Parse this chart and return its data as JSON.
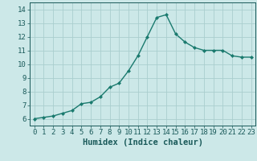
{
  "x": [
    0,
    1,
    2,
    3,
    4,
    5,
    6,
    7,
    8,
    9,
    10,
    11,
    12,
    13,
    14,
    15,
    16,
    17,
    18,
    19,
    20,
    21,
    22,
    23
  ],
  "y": [
    6.0,
    6.1,
    6.2,
    6.4,
    6.6,
    7.1,
    7.2,
    7.6,
    8.3,
    8.6,
    9.5,
    10.6,
    12.0,
    13.4,
    13.6,
    12.2,
    11.6,
    11.2,
    11.0,
    11.0,
    11.0,
    10.6,
    10.5,
    10.5
  ],
  "xlabel": "Humidex (Indice chaleur)",
  "xlim": [
    -0.5,
    23.5
  ],
  "ylim": [
    5.5,
    14.5
  ],
  "yticks": [
    6,
    7,
    8,
    9,
    10,
    11,
    12,
    13,
    14
  ],
  "xticks": [
    0,
    1,
    2,
    3,
    4,
    5,
    6,
    7,
    8,
    9,
    10,
    11,
    12,
    13,
    14,
    15,
    16,
    17,
    18,
    19,
    20,
    21,
    22,
    23
  ],
  "line_color": "#1a7a6e",
  "marker": "D",
  "marker_size": 2.0,
  "bg_color": "#cce8e8",
  "grid_color": "#aacece",
  "text_color": "#1a5a5a",
  "xlabel_fontsize": 7.5,
  "tick_fontsize": 6.5,
  "linewidth": 1.0
}
